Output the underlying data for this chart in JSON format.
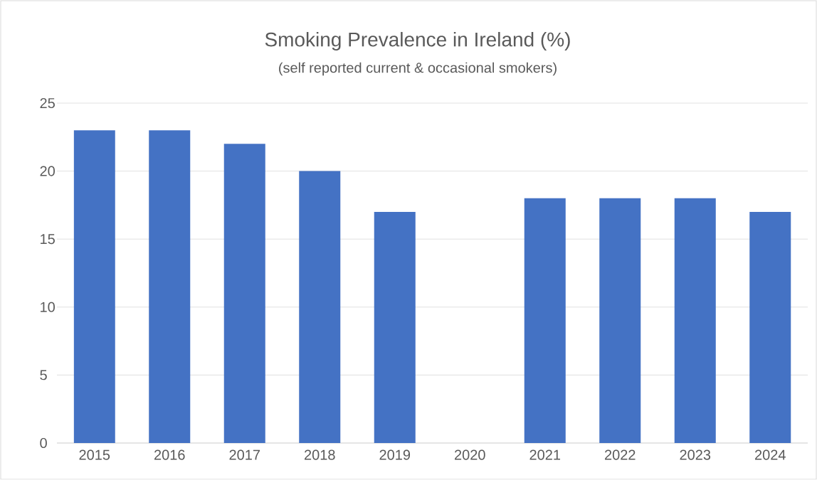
{
  "chart_data": {
    "type": "bar",
    "title": "Smoking Prevalence in Ireland (%)",
    "subtitle": "(self reported current & occasional smokers)",
    "categories": [
      "2015",
      "2016",
      "2017",
      "2018",
      "2019",
      "2020",
      "2021",
      "2022",
      "2023",
      "2024"
    ],
    "values": [
      23,
      23,
      22,
      20,
      17,
      null,
      18,
      18,
      18,
      17
    ],
    "color": "#4472c4",
    "ylim": [
      0,
      25
    ],
    "yticks": [
      0,
      5,
      10,
      15,
      20,
      25
    ],
    "grid": "y"
  }
}
